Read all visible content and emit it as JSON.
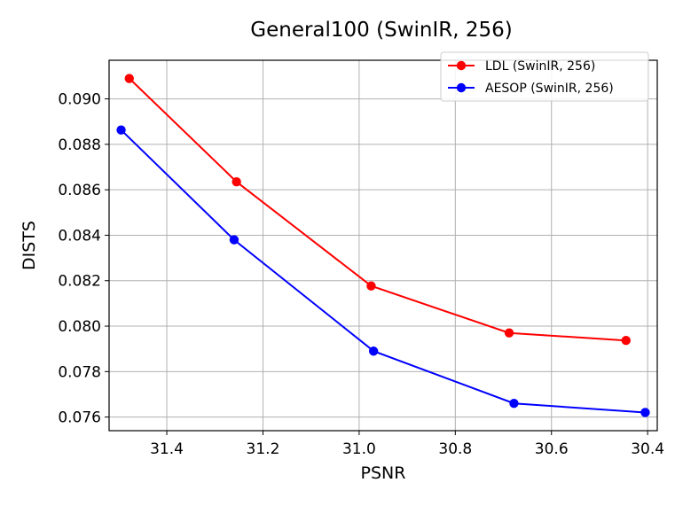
{
  "chart_data": {
    "type": "line",
    "title": "General100 (SwinIR, 256)",
    "xlabel": "PSNR",
    "ylabel": "DISTS",
    "xlim": [
      31.52,
      30.38
    ],
    "ylim": [
      0.0754,
      0.0917
    ],
    "x_inverted": true,
    "grid": true,
    "legend_position": "top-right",
    "xticks": [
      31.4,
      31.2,
      31.0,
      30.8,
      30.6,
      30.4
    ],
    "xtick_labels": [
      "31.4",
      "31.2",
      "31.0",
      "30.8",
      "30.6",
      "30.4"
    ],
    "yticks": [
      0.076,
      0.078,
      0.08,
      0.082,
      0.084,
      0.086,
      0.088,
      0.09
    ],
    "ytick_labels": [
      "0.076",
      "0.078",
      "0.080",
      "0.082",
      "0.084",
      "0.086",
      "0.088",
      "0.090"
    ],
    "series": [
      {
        "name": "LDL (SwinIR, 256)",
        "color": "#ff0000",
        "x": [
          31.478,
          31.255,
          30.975,
          30.688,
          30.445
        ],
        "y": [
          0.0909,
          0.08635,
          0.08177,
          0.0797,
          0.07937
        ]
      },
      {
        "name": "AESOP (SwinIR, 256)",
        "color": "#0000ff",
        "x": [
          31.495,
          31.26,
          30.97,
          30.678,
          30.405
        ],
        "y": [
          0.08863,
          0.0838,
          0.0789,
          0.0766,
          0.0762
        ]
      }
    ]
  }
}
